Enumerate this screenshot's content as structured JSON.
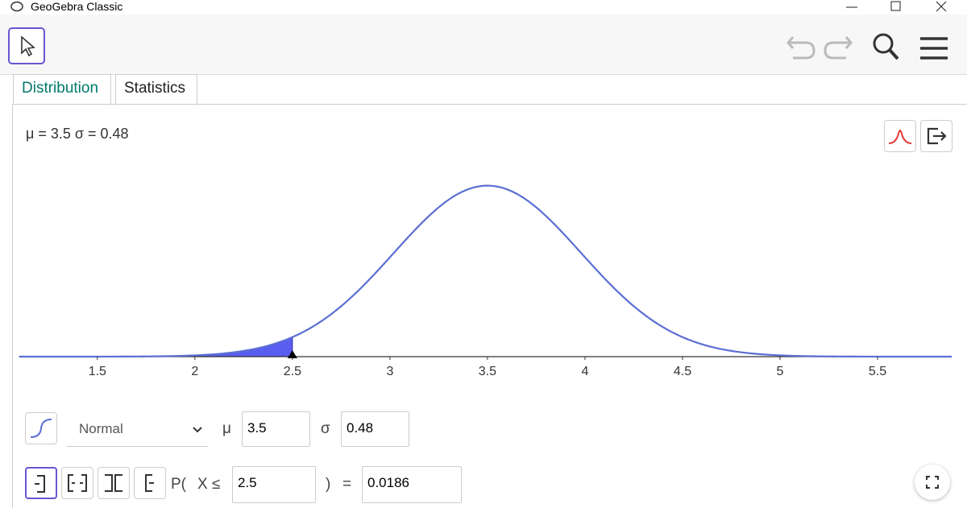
{
  "window": {
    "title": "GeoGebra Classic"
  },
  "tabs": [
    "Distribution",
    "Statistics"
  ],
  "summary": "μ = 3.5 σ = 0.48",
  "chart_data": {
    "type": "normal",
    "mean": 3.5,
    "sd": 0.48,
    "shade_upper": 2.5,
    "xlim": [
      1.1,
      5.88
    ],
    "ylim": [
      0,
      0.9
    ],
    "xticks": [
      1.5,
      2,
      2.5,
      3,
      3.5,
      4,
      4.5,
      5,
      5.5
    ],
    "color": "#5b6fd3",
    "fill_color": "#5a5ef0"
  },
  "controls": {
    "distribution": "Normal",
    "mu_label": "μ",
    "mu": "3.5",
    "sigma_label": "σ",
    "sigma": "0.48",
    "prob_open": "P(",
    "prob_var": "X ≤",
    "bound": "2.5",
    "prob_close": ")",
    "equals": "=",
    "result": "0.0186"
  }
}
